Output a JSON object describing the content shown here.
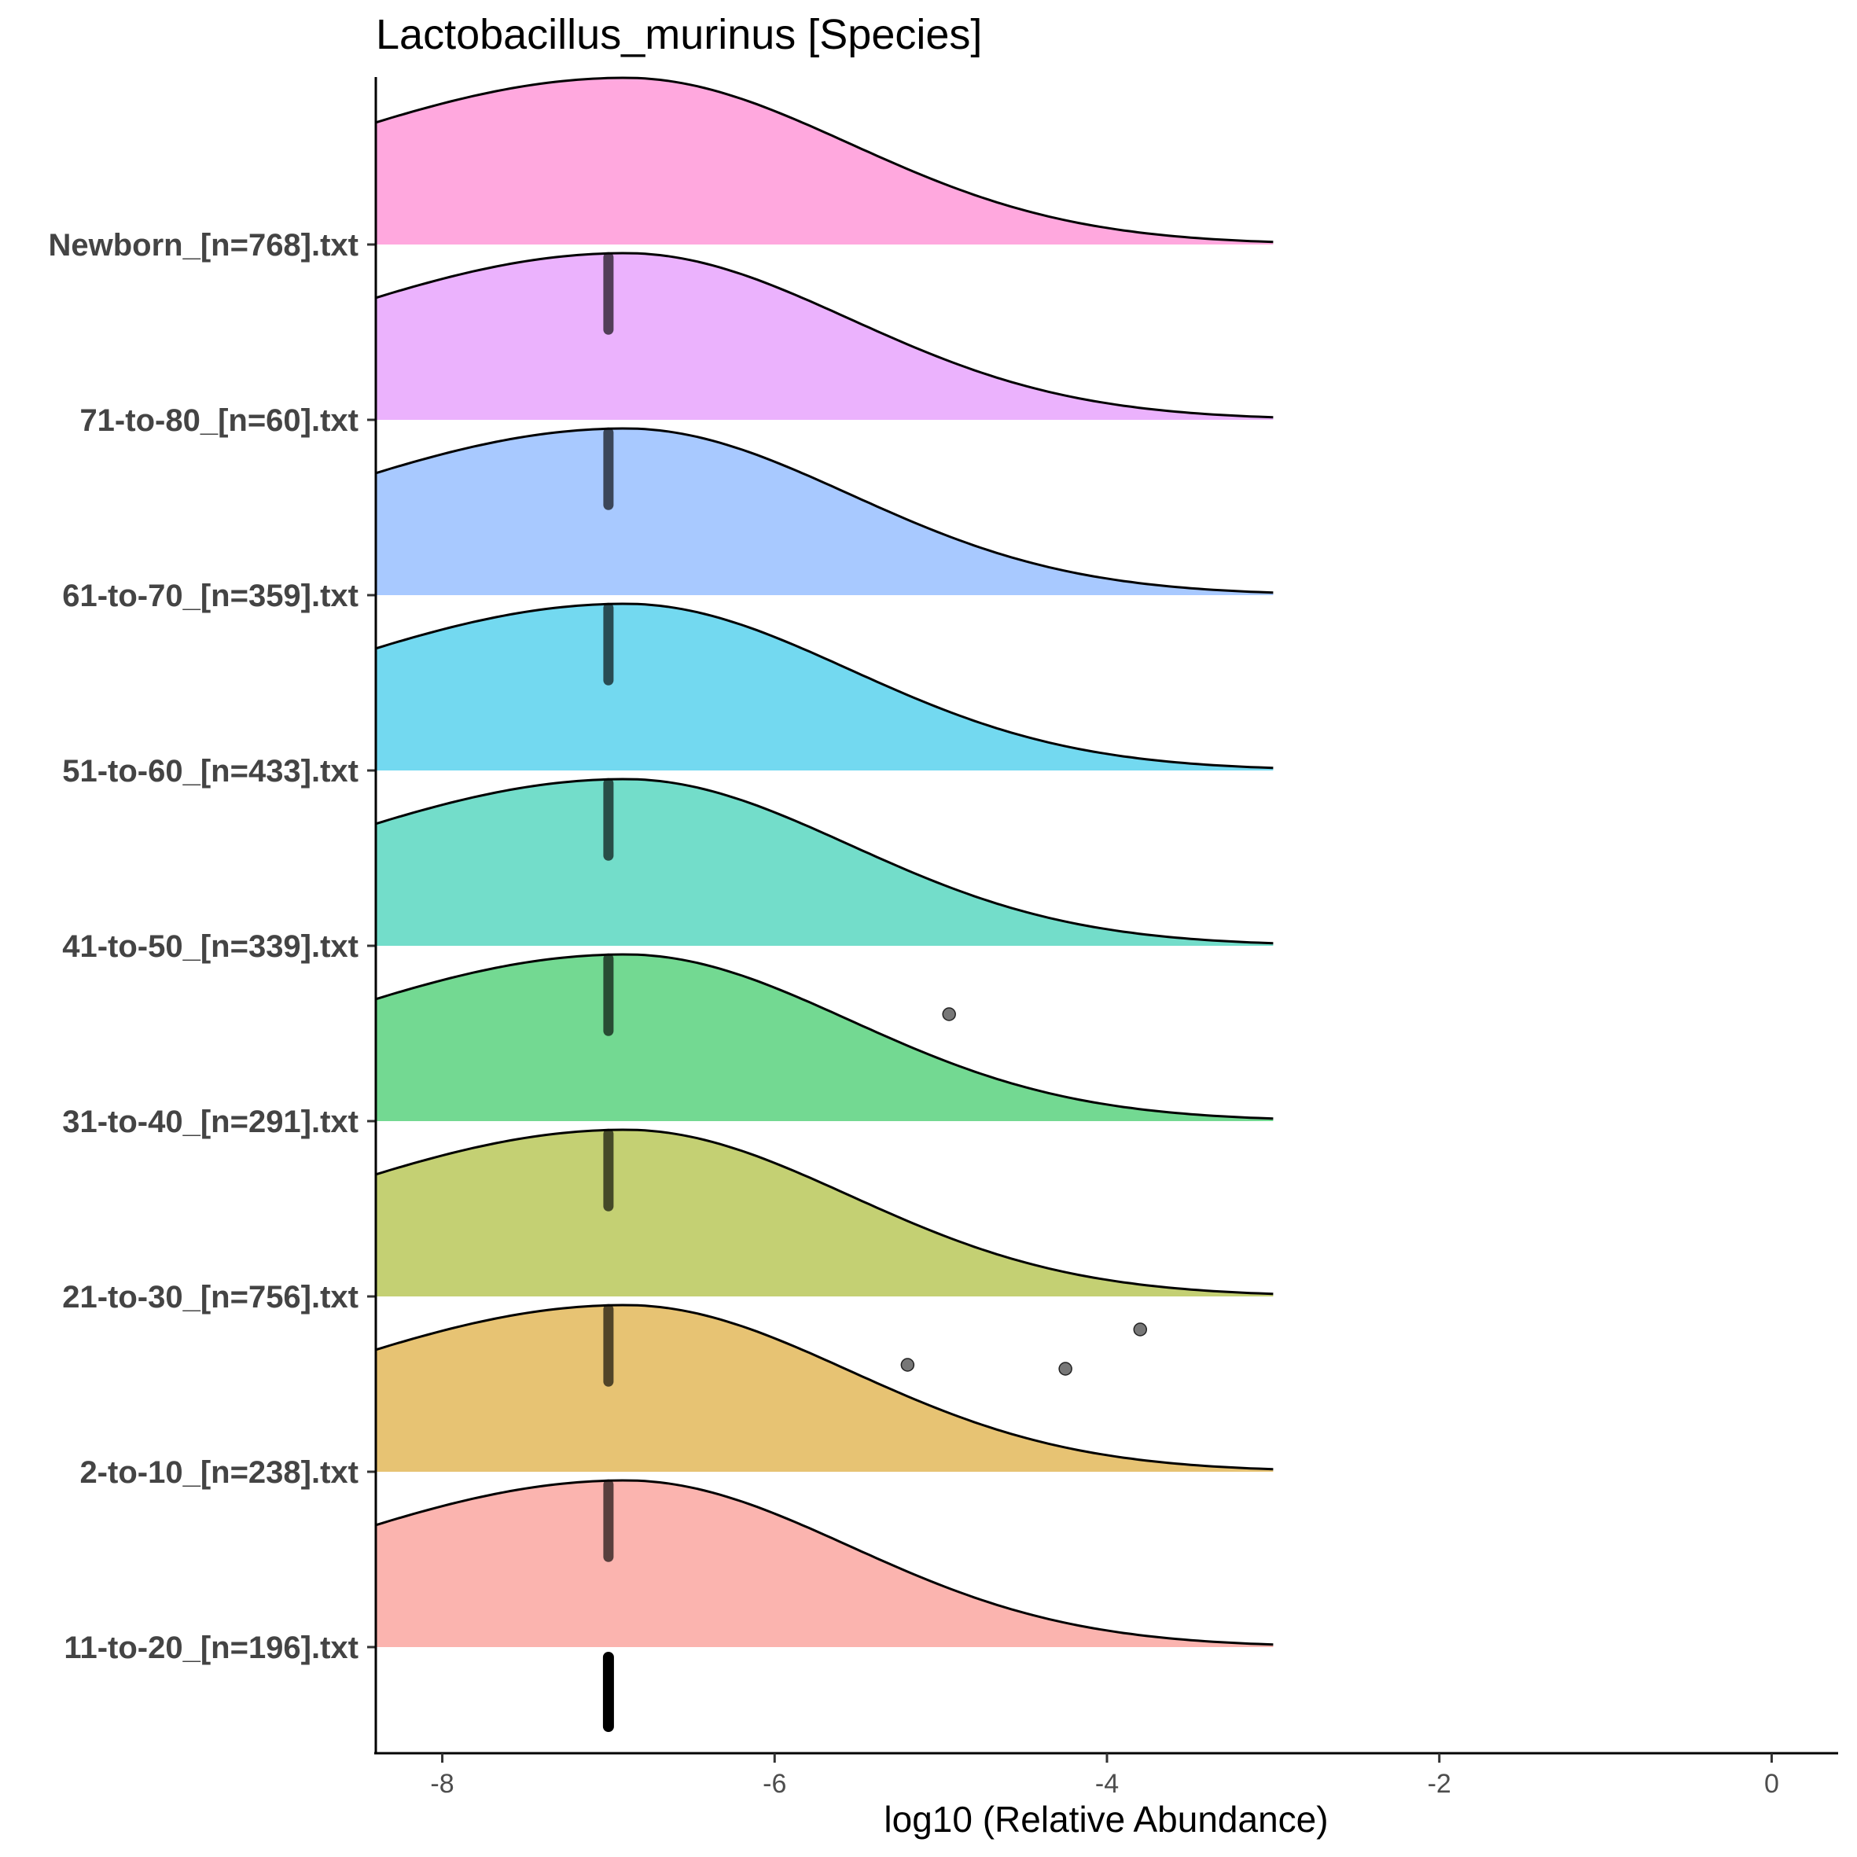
{
  "chart_data": {
    "type": "ridgeline",
    "title": "Lactobacillus_murinus [Species]",
    "xlabel": "log10 (Relative Abundance)",
    "ylabel": "",
    "xlim": [
      -8.4,
      0.4
    ],
    "xticks": [
      -8,
      -6,
      -4,
      -2,
      0
    ],
    "grid": false,
    "legend": "none",
    "density_range": [
      -8.4,
      -3.0
    ],
    "density_mode": -6.9,
    "series": [
      {
        "name": "11-to-20_[n=196].txt",
        "color": "#f8766d",
        "median": -7.0,
        "outliers": []
      },
      {
        "name": "2-to-10_[n=238].txt",
        "color": "#d39200",
        "median": -7.0,
        "outliers": [
          -5.2,
          -4.25,
          -3.8
        ]
      },
      {
        "name": "21-to-30_[n=756].txt",
        "color": "#93aa00",
        "median": -7.0,
        "outliers": []
      },
      {
        "name": "31-to-40_[n=291].txt",
        "color": "#00ba38",
        "median": -7.0,
        "outliers": [
          -4.95
        ]
      },
      {
        "name": "41-to-50_[n=339].txt",
        "color": "#00c19f",
        "median": -7.0,
        "outliers": []
      },
      {
        "name": "51-to-60_[n=433].txt",
        "color": "#00b9e3",
        "median": -7.0,
        "outliers": []
      },
      {
        "name": "61-to-70_[n=359].txt",
        "color": "#619cff",
        "median": -7.0,
        "outliers": []
      },
      {
        "name": "71-to-80_[n=60].txt",
        "color": "#db72fb",
        "median": -7.0,
        "outliers": []
      },
      {
        "name": "Newborn_[n=768].txt",
        "color": "#ff61c3",
        "median": null,
        "outliers": []
      }
    ]
  }
}
